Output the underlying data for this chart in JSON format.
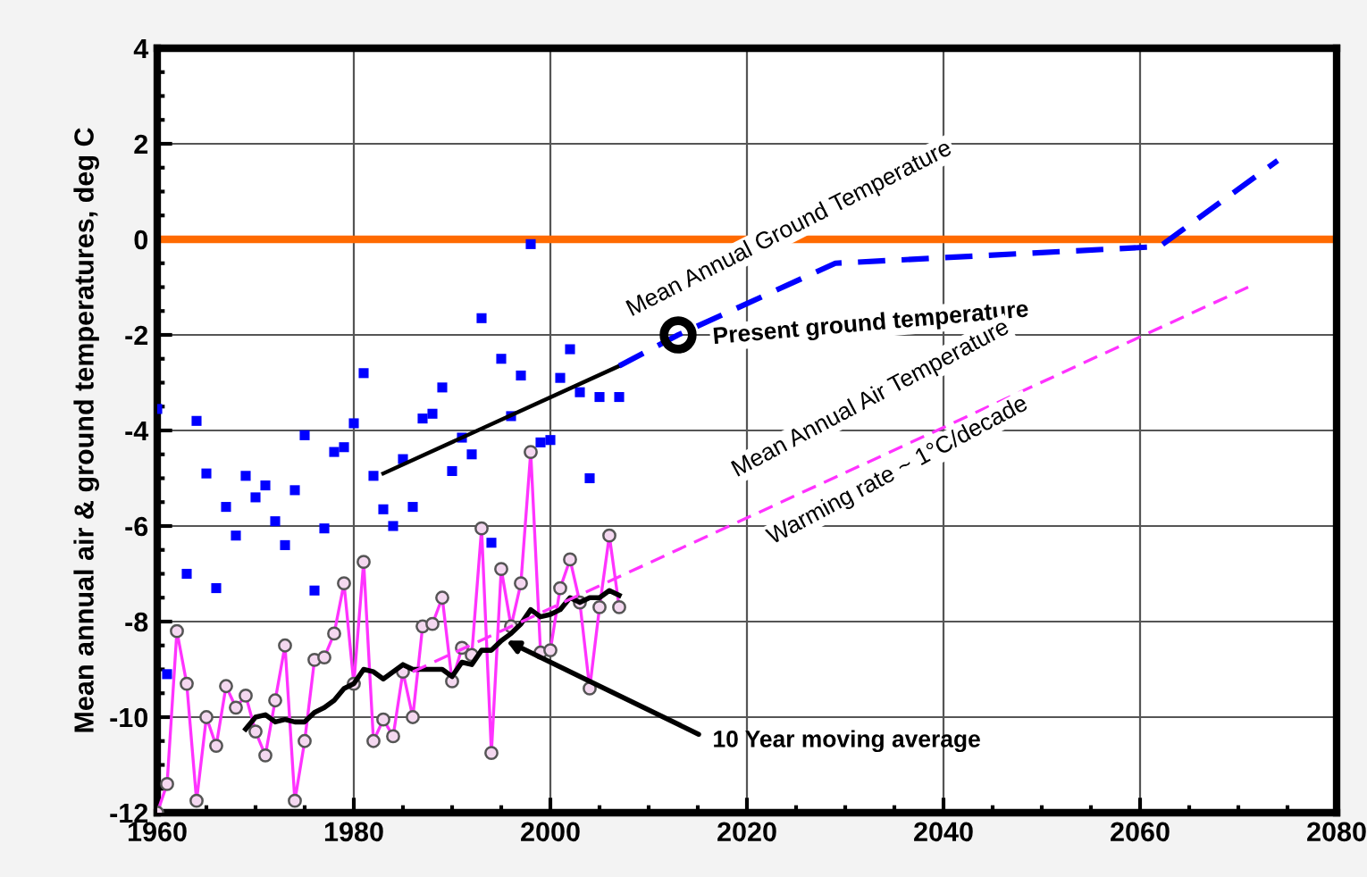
{
  "chart_data": {
    "type": "line",
    "ylabel": "Mean annual air & ground temperatures, deg C",
    "xlim": [
      1960,
      2080
    ],
    "xticks": [
      1960,
      1980,
      2000,
      2020,
      2040,
      2060,
      2080
    ],
    "ylim": [
      -12,
      4
    ],
    "yticks": [
      -12,
      -10,
      -8,
      -6,
      -4,
      -2,
      0,
      2,
      4
    ],
    "grid": true,
    "ref_lines": [
      {
        "axis": "y",
        "value": 0,
        "label": null,
        "color": "#ff6a00",
        "line_style": "solid"
      }
    ],
    "series": [
      {
        "type": "scatter",
        "color": "#0000ff",
        "marker": "square",
        "x": [
          1960,
          1961,
          1963,
          1964,
          1965,
          1966,
          1967,
          1968,
          1969,
          1970,
          1971,
          1972,
          1973,
          1974,
          1975,
          1976,
          1977,
          1978,
          1979,
          1980,
          1981,
          1982,
          1983,
          1984,
          1985,
          1986,
          1987,
          1988,
          1989,
          1990,
          1991,
          1992,
          1993,
          1994,
          1995,
          1996,
          1997,
          1998,
          1999,
          2000,
          2001,
          2002,
          2003,
          2004,
          2005,
          2007
        ],
        "values": [
          -3.55,
          -9.1,
          -7.0,
          -3.8,
          -4.9,
          -7.3,
          -5.6,
          -6.2,
          -4.95,
          -5.4,
          -5.15,
          -5.9,
          -6.4,
          -5.25,
          -4.1,
          -7.35,
          -6.05,
          -4.45,
          -4.35,
          -3.85,
          -2.8,
          -4.95,
          -5.65,
          -6.0,
          -4.6,
          -5.6,
          -3.75,
          -3.65,
          -3.1,
          -4.85,
          -4.15,
          -4.5,
          -1.65,
          -6.35,
          -2.5,
          -3.7,
          -2.85,
          -0.1,
          -4.25,
          -4.2,
          -2.9,
          -2.3,
          -3.2,
          -5.0,
          -3.3,
          -3.3
        ]
      },
      {
        "color": "#000000",
        "line_style": "solid",
        "x": [
          1983,
          2007
        ],
        "values": [
          -4.9,
          -2.65
        ]
      },
      {
        "type": "line",
        "color": "#0000ff",
        "line_style": "dashed",
        "x": [
          2007,
          2013,
          2029,
          2062,
          2074
        ],
        "values": [
          -2.65,
          -2.0,
          -0.5,
          -0.15,
          1.65
        ]
      },
      {
        "type": "scatter",
        "color": "#000000",
        "marker": "circle",
        "x": [
          2013
        ],
        "values": [
          -2.0
        ]
      },
      {
        "type": "line",
        "color": "#ff33ff",
        "marker": "circle",
        "line_style": "solid",
        "x": [
          1960,
          1961,
          1962,
          1963,
          1964,
          1965,
          1966,
          1967,
          1968,
          1969,
          1970,
          1971,
          1972,
          1973,
          1974,
          1975,
          1976,
          1977,
          1978,
          1979,
          1980,
          1981,
          1982,
          1983,
          1984,
          1985,
          1986,
          1987,
          1988,
          1989,
          1990,
          1991,
          1992,
          1993,
          1994,
          1995,
          1996,
          1997,
          1998,
          1999,
          2000,
          2001,
          2002,
          2003,
          2004,
          2005,
          2006,
          2007
        ],
        "values": [
          -12,
          -11.4,
          -8.2,
          -9.3,
          -11.75,
          -10.0,
          -10.6,
          -9.35,
          -9.8,
          -9.55,
          -10.3,
          -10.8,
          -9.65,
          -8.5,
          -11.75,
          -10.5,
          -8.8,
          -8.75,
          -8.25,
          -7.2,
          -9.3,
          -6.75,
          -10.5,
          -10.05,
          -10.4,
          -9.05,
          -10.0,
          -8.1,
          -8.05,
          -7.5,
          -9.25,
          -8.55,
          -8.7,
          -6.05,
          -10.75,
          -6.9,
          -8.1,
          -7.2,
          -4.45,
          -8.65,
          -8.6,
          -7.3,
          -6.7,
          -7.6,
          -9.4,
          -7.7,
          -6.2,
          -7.7
        ]
      },
      {
        "type": "line",
        "color": "#000000",
        "line_style": "solid",
        "x": [
          1969,
          1970,
          1971,
          1972,
          1973,
          1974,
          1975,
          1976,
          1977,
          1978,
          1979,
          1980,
          1981,
          1982,
          1983,
          1984,
          1985,
          1986,
          1987,
          1988,
          1989,
          1990,
          1991,
          1992,
          1993,
          1994,
          1995,
          1996,
          1997,
          1998,
          1999,
          2000,
          2001,
          2002,
          2003,
          2004,
          2005,
          2006,
          2007
        ],
        "values": [
          -10.25,
          -10.0,
          -9.95,
          -10.1,
          -10.05,
          -10.1,
          -10.1,
          -9.9,
          -9.8,
          -9.65,
          -9.4,
          -9.3,
          -9.0,
          -9.05,
          -9.2,
          -9.05,
          -8.9,
          -9.0,
          -9.0,
          -9.0,
          -9.0,
          -9.15,
          -8.85,
          -8.9,
          -8.6,
          -8.6,
          -8.4,
          -8.25,
          -8.05,
          -7.75,
          -7.9,
          -7.85,
          -7.75,
          -7.5,
          -7.6,
          -7.5,
          -7.5,
          -7.35,
          -7.45
        ]
      },
      {
        "type": "line",
        "color": "#ff33ff",
        "line_style": "dashed",
        "x": [
          1986,
          2071
        ],
        "values": [
          -9.05,
          -1.0
        ]
      }
    ],
    "annotations": [
      "Mean Annual Ground Temperature",
      "Present ground temperature",
      "Mean Annual Air Temperature",
      "Warming rate ~ 1°C/decade",
      {
        "text": "10 Year moving average",
        "x": 1995.5,
        "y": -8.4
      }
    ]
  }
}
